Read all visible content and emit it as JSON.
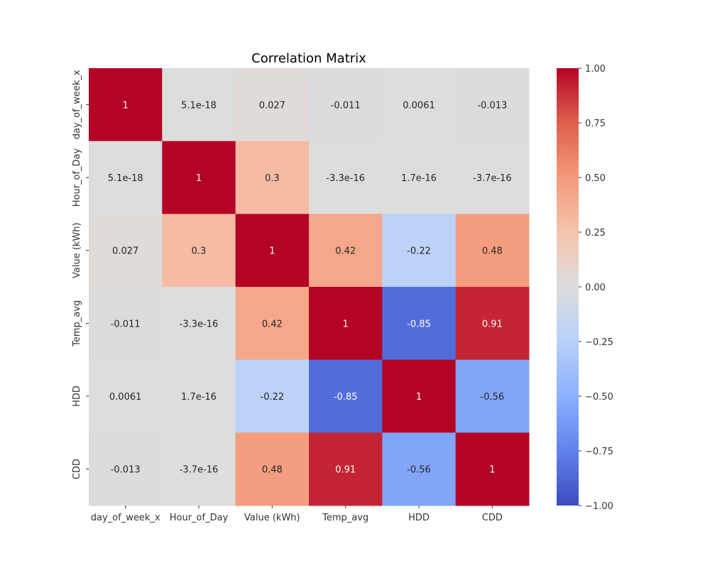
{
  "chart_data": {
    "type": "heatmap",
    "title": "Correlation Matrix",
    "x_labels": [
      "day_of_week_x",
      "Hour_of_Day",
      "Value (kWh)",
      "Temp_avg",
      "HDD",
      "CDD"
    ],
    "y_labels": [
      "day_of_week_x",
      "Hour_of_Day",
      "Value (kWh)",
      "Temp_avg",
      "HDD",
      "CDD"
    ],
    "values": [
      [
        1,
        5.1e-18,
        0.027,
        -0.011,
        0.0061,
        -0.013
      ],
      [
        5.1e-18,
        1,
        0.3,
        -3.3e-16,
        1.7e-16,
        -3.7e-16
      ],
      [
        0.027,
        0.3,
        1,
        0.42,
        -0.22,
        0.48
      ],
      [
        -0.011,
        -3.3e-16,
        0.42,
        1,
        -0.85,
        0.91
      ],
      [
        0.0061,
        1.7e-16,
        -0.22,
        -0.85,
        1,
        -0.56
      ],
      [
        -0.013,
        -3.7e-16,
        0.48,
        0.91,
        -0.56,
        1
      ]
    ],
    "annotations": [
      [
        "1",
        "5.1e-18",
        "0.027",
        "-0.011",
        "0.0061",
        "-0.013"
      ],
      [
        "5.1e-18",
        "1",
        "0.3",
        "-3.3e-16",
        "1.7e-16",
        "-3.7e-16"
      ],
      [
        "0.027",
        "0.3",
        "1",
        "0.42",
        "-0.22",
        "0.48"
      ],
      [
        "-0.011",
        "-3.3e-16",
        "0.42",
        "1",
        "-0.85",
        "0.91"
      ],
      [
        "0.0061",
        "1.7e-16",
        "-0.22",
        "-0.85",
        "1",
        "-0.56"
      ],
      [
        "-0.013",
        "-3.7e-16",
        "0.48",
        "0.91",
        "-0.56",
        "1"
      ]
    ],
    "colormap": "coolwarm",
    "vmin": -1.0,
    "vmax": 1.0,
    "colorbar_ticks": [
      "1.00",
      "0.75",
      "0.50",
      "0.25",
      "0.00",
      "−0.25",
      "−0.50",
      "−0.75",
      "−1.00"
    ],
    "colorbar_tick_values": [
      1.0,
      0.75,
      0.5,
      0.25,
      0.0,
      -0.25,
      -0.5,
      -0.75,
      -1.0
    ],
    "grid": false,
    "legend": "colorbar-right"
  }
}
